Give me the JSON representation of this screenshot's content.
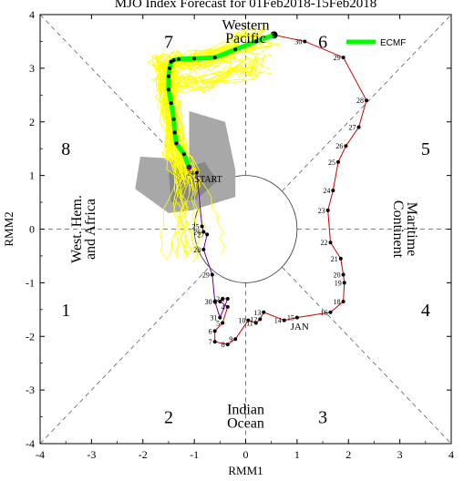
{
  "chart_data": {
    "type": "scatter",
    "title": "MJO Index Forecast for 01Feb2018-15Feb2018",
    "xlabel": "RMM1",
    "ylabel": "RMM2",
    "xlim": [
      -4,
      4
    ],
    "ylim": [
      -4,
      4
    ],
    "ticks": [
      "-4",
      "-3",
      "-2",
      "-1",
      "0",
      "1",
      "2",
      "3",
      "4"
    ],
    "grid": false,
    "phases": [
      "1",
      "2",
      "3",
      "4",
      "5",
      "6",
      "7",
      "8"
    ],
    "regions": {
      "western_pacific": [
        "Western",
        "Pacific"
      ],
      "indian_ocean": [
        "Indian",
        "Ocean"
      ],
      "west_hem": [
        "West. Hem.",
        "and Africa"
      ],
      "maritime": [
        "Maritime",
        "Continent"
      ]
    },
    "unit_circle_radius": 1,
    "legend": {
      "label": "ECMF",
      "color": "#00ff00",
      "position": "top-right"
    },
    "colors": {
      "jan": "#cc0000",
      "feb": "#660099",
      "ensemble": "#ffff00",
      "spread": "#a8a8a8",
      "forecast": "#00ff00"
    },
    "observed_jan": [
      {
        "label": "30",
        "x": 1.15,
        "y": 3.5
      },
      {
        "label": "29",
        "x": 1.9,
        "y": 3.2
      },
      {
        "label": "28",
        "x": 2.35,
        "y": 2.4
      },
      {
        "label": "27",
        "x": 2.2,
        "y": 1.9
      },
      {
        "label": "26",
        "x": 1.95,
        "y": 1.55
      },
      {
        "label": "25",
        "x": 1.8,
        "y": 1.25
      },
      {
        "label": "24",
        "x": 1.7,
        "y": 0.72
      },
      {
        "label": "23",
        "x": 1.6,
        "y": 0.35
      },
      {
        "label": "22",
        "x": 1.65,
        "y": -0.25
      },
      {
        "label": "21",
        "x": 1.85,
        "y": -0.55
      },
      {
        "label": "20",
        "x": 1.9,
        "y": -0.85
      },
      {
        "label": "19",
        "x": 1.92,
        "y": -1.0
      },
      {
        "label": "18",
        "x": 1.9,
        "y": -1.35
      },
      {
        "label": "16",
        "x": 1.65,
        "y": -1.55
      },
      {
        "label": "15",
        "x": 1.0,
        "y": -1.65
      },
      {
        "label": "14",
        "x": 0.75,
        "y": -1.7
      },
      {
        "label": "13",
        "x": 0.35,
        "y": -1.55
      },
      {
        "label": "12",
        "x": 0.28,
        "y": -1.68
      },
      {
        "label": "11",
        "x": 0.2,
        "y": -1.75
      },
      {
        "label": "10",
        "x": 0.05,
        "y": -1.7
      },
      {
        "label": "9",
        "x": -0.2,
        "y": -2.05
      },
      {
        "label": "8",
        "x": -0.35,
        "y": -2.15
      },
      {
        "label": "7",
        "x": -0.6,
        "y": -2.1
      },
      {
        "label": "6",
        "x": -0.6,
        "y": -1.9
      },
      {
        "label": "5",
        "x": -0.45,
        "y": -1.75
      },
      {
        "label": "4",
        "x": -0.35,
        "y": -1.45
      },
      {
        "label": "3",
        "x": -0.5,
        "y": -1.35
      },
      {
        "label": "2",
        "x": -0.45,
        "y": -1.3
      },
      {
        "label": "1",
        "x": -0.35,
        "y": -1.3
      }
    ],
    "observed_feb": [
      {
        "label": "31",
        "x": -0.5,
        "y": -1.65
      },
      {
        "label": "30",
        "x": -0.6,
        "y": -1.35
      },
      {
        "label": "29",
        "x": -0.65,
        "y": -0.85
      },
      {
        "label": "28",
        "x": -0.82,
        "y": -0.38
      },
      {
        "label": "27",
        "x": -0.75,
        "y": -0.1
      },
      {
        "label": "26",
        "x": -0.82,
        "y": -0.05
      },
      {
        "label": "25",
        "x": -0.85,
        "y": 0.05
      },
      {
        "label": "24",
        "x": -0.95,
        "y": 1.05
      }
    ],
    "start": {
      "label": "START",
      "x": -1.1,
      "y": 1.15
    },
    "highlight": {
      "x": 0.55,
      "y": 3.62
    },
    "forecast_mean": {
      "x": [
        -1.1,
        -1.2,
        -1.35,
        -1.38,
        -1.4,
        -1.45,
        -1.5,
        -1.5,
        -1.48,
        -1.45,
        -1.4,
        -1.3,
        -1.0,
        -0.6,
        -0.2,
        0.2,
        0.55
      ],
      "y": [
        1.15,
        1.4,
        1.6,
        1.8,
        2.05,
        2.35,
        2.6,
        2.85,
        3.0,
        3.12,
        3.15,
        3.17,
        3.18,
        3.2,
        3.35,
        3.5,
        3.62
      ]
    },
    "annotation": "JAN",
    "annotation_pos": {
      "x": 1.05,
      "y": -1.88
    }
  }
}
